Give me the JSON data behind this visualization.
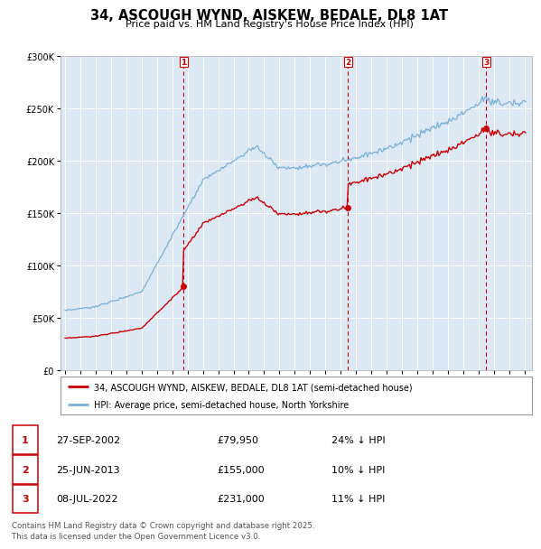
{
  "title": "34, ASCOUGH WYND, AISKEW, BEDALE, DL8 1AT",
  "subtitle": "Price paid vs. HM Land Registry's House Price Index (HPI)",
  "legend_property": "34, ASCOUGH WYND, AISKEW, BEDALE, DL8 1AT (semi-detached house)",
  "legend_hpi": "HPI: Average price, semi-detached house, North Yorkshire",
  "sales": [
    {
      "label": "1",
      "date_str": "27-SEP-2002",
      "price": 79950,
      "pct": "24% ↓ HPI",
      "x": 2002.74
    },
    {
      "label": "2",
      "date_str": "25-JUN-2013",
      "price": 155000,
      "pct": "10% ↓ HPI",
      "x": 2013.48
    },
    {
      "label": "3",
      "date_str": "08-JUL-2022",
      "price": 231000,
      "pct": "11% ↓ HPI",
      "x": 2022.52
    }
  ],
  "footnote": "Contains HM Land Registry data © Crown copyright and database right 2025.\nThis data is licensed under the Open Government Licence v3.0.",
  "hpi_color": "#7ab0d8",
  "property_color": "#cc0000",
  "vline_color": "#cc0000",
  "background_color": "#ffffff",
  "plot_bg_color": "#dce9f5",
  "ylim": [
    0,
    300000
  ],
  "yticks": [
    0,
    50000,
    100000,
    150000,
    200000,
    250000,
    300000
  ],
  "xlim": [
    1994.7,
    2025.5
  ]
}
